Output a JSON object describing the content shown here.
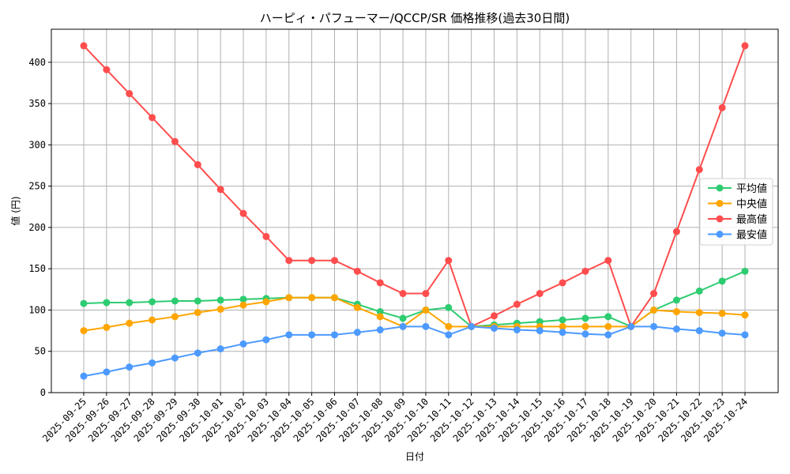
{
  "chart_data": {
    "type": "line",
    "title": "ハーピィ・パフューマー/QCCP/SR 価格推移(過去30日間)",
    "xlabel": "日付",
    "ylabel": "値 (円)",
    "ylim": [
      0,
      440
    ],
    "yticks": [
      0,
      50,
      100,
      150,
      200,
      250,
      300,
      350,
      400
    ],
    "grid": true,
    "legend_position": "center right",
    "x": [
      "2025-09-25",
      "2025-09-26",
      "2025-09-27",
      "2025-09-28",
      "2025-09-29",
      "2025-09-30",
      "2025-10-01",
      "2025-10-02",
      "2025-10-03",
      "2025-10-04",
      "2025-10-05",
      "2025-10-06",
      "2025-10-07",
      "2025-10-08",
      "2025-10-09",
      "2025-10-10",
      "2025-10-11",
      "2025-10-12",
      "2025-10-13",
      "2025-10-14",
      "2025-10-15",
      "2025-10-16",
      "2025-10-17",
      "2025-10-18",
      "2025-10-19",
      "2025-10-20",
      "2025-10-21",
      "2025-10-22",
      "2025-10-23",
      "2025-10-24"
    ],
    "series": [
      {
        "name": "平均値",
        "color": "#2ecc71",
        "values": [
          108,
          109,
          109,
          110,
          111,
          111,
          112,
          113,
          114,
          115,
          115,
          115,
          107,
          98,
          90,
          100,
          103,
          80,
          82,
          84,
          86,
          88,
          90,
          92,
          80,
          100,
          112,
          123,
          135,
          147
        ]
      },
      {
        "name": "中央値",
        "color": "#ffa500",
        "values": [
          75,
          79,
          84,
          88,
          92,
          97,
          101,
          106,
          110,
          115,
          115,
          115,
          103,
          92,
          80,
          100,
          80,
          80,
          80,
          80,
          80,
          80,
          80,
          80,
          80,
          100,
          98,
          97,
          96,
          94
        ]
      },
      {
        "name": "最高値",
        "color": "#ff4d4d",
        "values": [
          420,
          391,
          362,
          333,
          304,
          276,
          246,
          217,
          189,
          160,
          160,
          160,
          147,
          133,
          120,
          120,
          160,
          80,
          93,
          107,
          120,
          133,
          147,
          160,
          80,
          120,
          195,
          270,
          345,
          420
        ]
      },
      {
        "name": "最安値",
        "color": "#4d9aff",
        "values": [
          20,
          25,
          31,
          36,
          42,
          48,
          53,
          59,
          64,
          70,
          70,
          70,
          73,
          76,
          80,
          80,
          70,
          80,
          78,
          76,
          75,
          73,
          71,
          70,
          80,
          80,
          77,
          75,
          72,
          70
        ]
      }
    ]
  }
}
